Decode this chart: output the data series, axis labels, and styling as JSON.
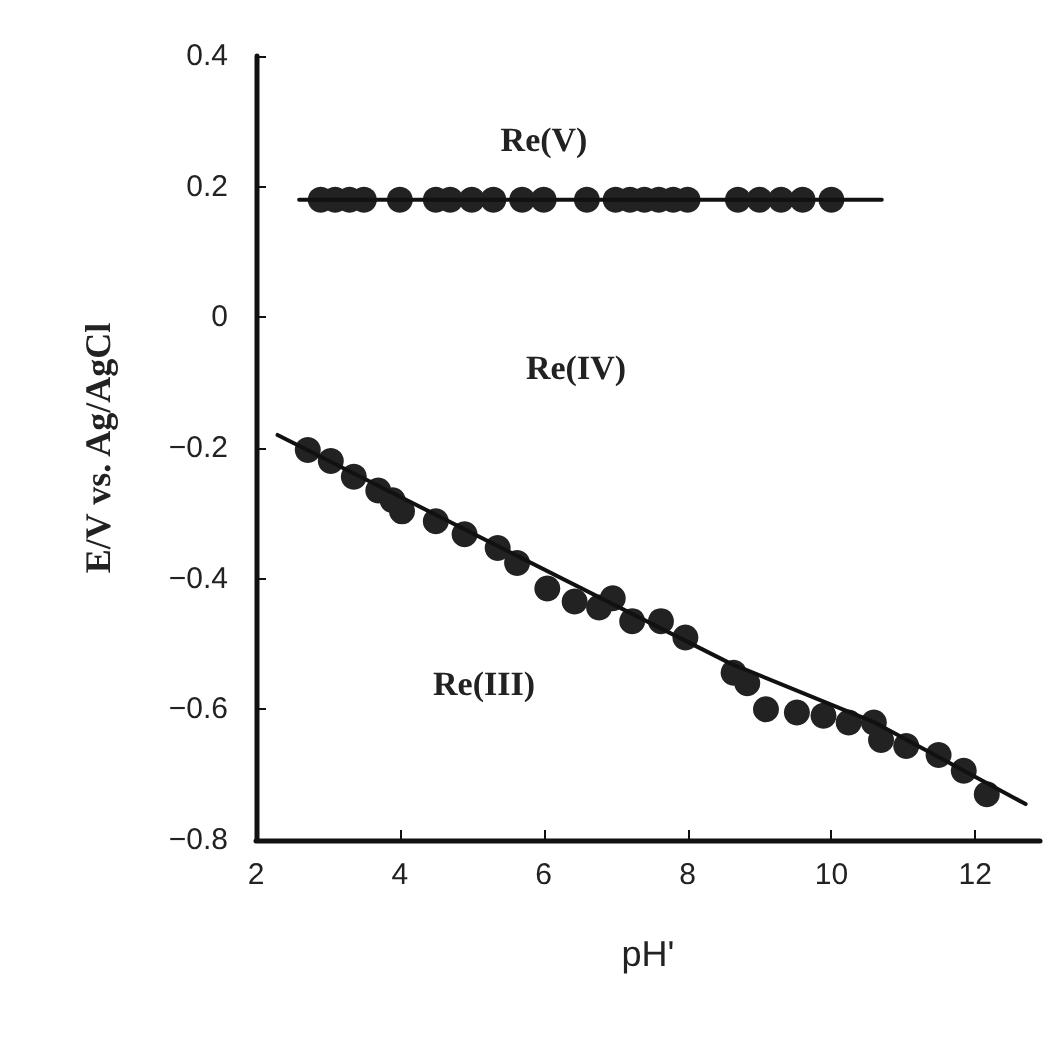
{
  "chart_data": {
    "type": "scatter",
    "xlabel": "pH'",
    "ylabel": "E/V vs. Ag/AgCl",
    "xlim": [
      2,
      12.9
    ],
    "ylim": [
      -0.8,
      0.4
    ],
    "xticks": [
      2,
      4,
      6,
      8,
      10,
      12
    ],
    "yticks": [
      {
        "value": -0.8,
        "label": "−0.8"
      },
      {
        "value": -0.6,
        "label": "−0.6"
      },
      {
        "value": -0.4,
        "label": "−0.4"
      },
      {
        "value": -0.2,
        "label": "−0.2"
      },
      0,
      0.2,
      0.4
    ],
    "grid": false,
    "marker": "circle",
    "series": [
      {
        "type": "line",
        "color": "#111111",
        "marker": "none",
        "line_style": "solid",
        "x": [
          2.6,
          10.7
        ],
        "values": [
          0.18,
          0.18
        ]
      },
      {
        "type": "line",
        "color": "#111111",
        "marker": "none",
        "line_style": "solid",
        "x": [
          2.3,
          8.6,
          10.6,
          12.7
        ],
        "values": [
          -0.18,
          -0.53,
          -0.62,
          -0.745
        ]
      },
      {
        "color": "#222222",
        "x": [
          2.9,
          3.1,
          3.3,
          3.5,
          4.0,
          4.5,
          4.7,
          5.0,
          5.3,
          5.7,
          6.0,
          6.6,
          7.0,
          7.2,
          7.4,
          7.6,
          7.8,
          8.0,
          8.7,
          9.0,
          9.3,
          9.6,
          10.0
        ],
        "values": [
          0.18,
          0.18,
          0.18,
          0.18,
          0.18,
          0.18,
          0.18,
          0.18,
          0.18,
          0.18,
          0.18,
          0.18,
          0.18,
          0.18,
          0.18,
          0.18,
          0.18,
          0.18,
          0.18,
          0.18,
          0.18,
          0.18,
          0.18
        ]
      },
      {
        "color": "#222222",
        "x": [
          2.72,
          3.04,
          3.36,
          3.7,
          3.9,
          4.03,
          4.5,
          4.9,
          5.36,
          5.63,
          6.05,
          6.43,
          6.77,
          6.96,
          7.23,
          7.63,
          7.97,
          8.64,
          8.83,
          9.09,
          9.52,
          9.89,
          10.24,
          10.59,
          10.69,
          11.04,
          11.49,
          11.84,
          12.16
        ],
        "values": [
          -0.203,
          -0.22,
          -0.244,
          -0.265,
          -0.28,
          -0.297,
          -0.312,
          -0.332,
          -0.353,
          -0.376,
          -0.415,
          -0.435,
          -0.444,
          -0.43,
          -0.465,
          -0.465,
          -0.49,
          -0.544,
          -0.56,
          -0.6,
          -0.605,
          -0.61,
          -0.62,
          -0.62,
          -0.647,
          -0.656,
          -0.67,
          -0.694,
          -0.73
        ]
      }
    ],
    "annotations": [
      "Re(V)",
      "Re(IV)",
      "Re(III)"
    ]
  }
}
